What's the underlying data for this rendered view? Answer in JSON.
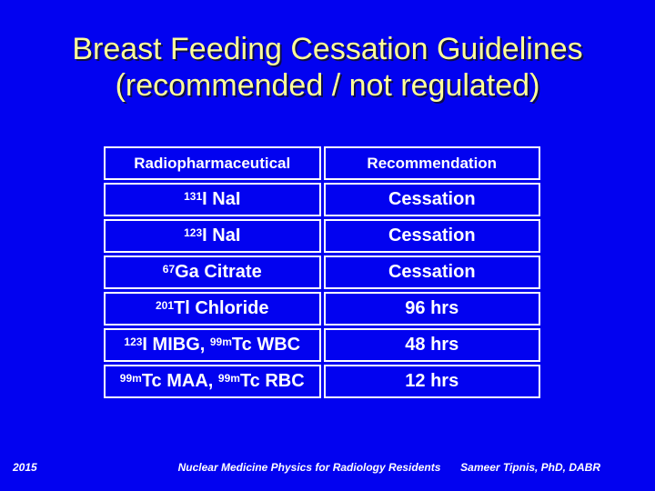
{
  "slide": {
    "title_line1": "Breast Feeding Cessation Guidelines",
    "title_line2": "(recommended / not regulated)",
    "table": {
      "headers": [
        "Radiopharmaceutical",
        "Recommendation"
      ],
      "rows": [
        {
          "agent": [
            {
              "sup": "131"
            },
            {
              "t": "I NaI"
            }
          ],
          "recommendation": "Cessation"
        },
        {
          "agent": [
            {
              "sup": "123"
            },
            {
              "t": "I NaI"
            }
          ],
          "recommendation": "Cessation"
        },
        {
          "agent": [
            {
              "sup": "67"
            },
            {
              "t": "Ga Citrate"
            }
          ],
          "recommendation": "Cessation"
        },
        {
          "agent": [
            {
              "sup": "201"
            },
            {
              "t": "Tl  Chloride"
            }
          ],
          "recommendation": "96 hrs"
        },
        {
          "agent": [
            {
              "sup": "123"
            },
            {
              "t": "I MIBG, "
            },
            {
              "sup": "99m"
            },
            {
              "t": "Tc WBC"
            }
          ],
          "recommendation": "48 hrs"
        },
        {
          "agent": [
            {
              "sup": "99m"
            },
            {
              "t": "Tc MAA, "
            },
            {
              "sup": "99m"
            },
            {
              "t": "Tc RBC"
            }
          ],
          "recommendation": "12 hrs"
        }
      ]
    },
    "footer": {
      "year": "2015",
      "course": "Nuclear Medicine Physics for Radiology Residents",
      "author": "Sameer Tipnis, PhD, DABR"
    },
    "colors": {
      "background": "#0202f0",
      "title": "#ffff99",
      "table_border": "#ffffff",
      "text": "#ffffff"
    }
  }
}
